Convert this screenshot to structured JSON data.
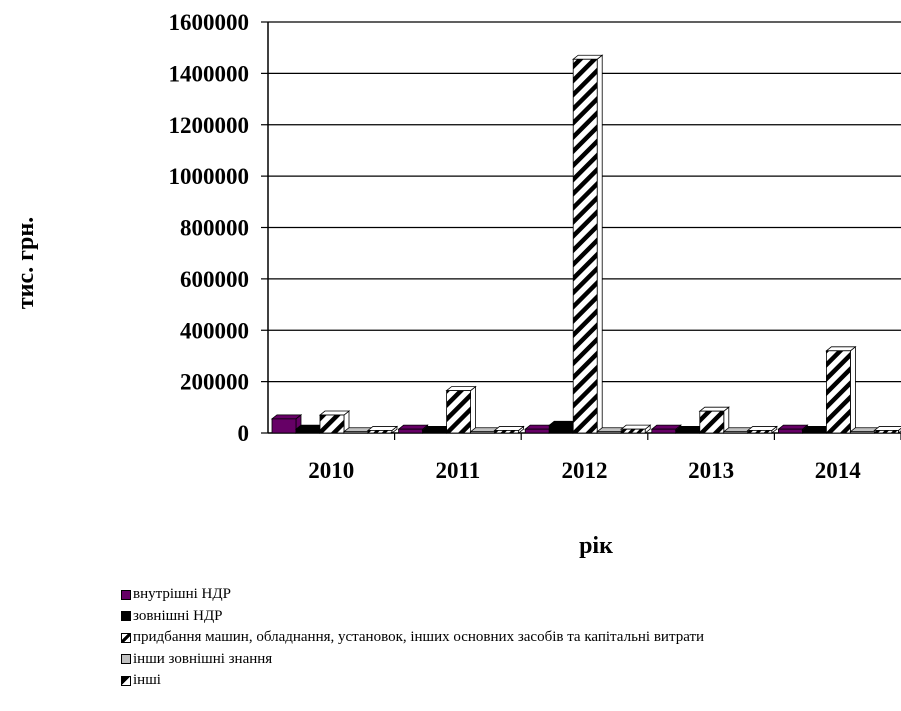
{
  "chart_data": {
    "type": "bar",
    "categories": [
      "2010",
      "2011",
      "2012",
      "2013",
      "2014"
    ],
    "xlabel": "рік",
    "ylabel": "тис. грн.",
    "ylim": [
      0,
      1600000
    ],
    "yticks": [
      "0",
      "200000",
      "400000",
      "600000",
      "800000",
      "1000000",
      "1200000",
      "1400000",
      "1600000"
    ],
    "grid": true,
    "legend_position": "bottom",
    "series": [
      {
        "name": "внутрішні  НДР",
        "values": [
          55000,
          15000,
          15000,
          15000,
          15000
        ],
        "color": "#660066",
        "pattern": "solid"
      },
      {
        "name": "зовнішні  НДР",
        "values": [
          15000,
          10000,
          30000,
          10000,
          10000
        ],
        "color": "#000000",
        "pattern": "solid"
      },
      {
        "name": "придбання  машин,  обладнання,  установок,  інших  основних  засобів  та капітальні  витрати",
        "values": [
          70000,
          165000,
          1455000,
          85000,
          320000
        ],
        "color": "#ffffff",
        "pattern": "hatch"
      },
      {
        "name": "інши  зовнішні  знання",
        "values": [
          5000,
          5000,
          5000,
          5000,
          5000
        ],
        "color": "#c0c0c0",
        "pattern": "solid"
      },
      {
        "name": "інші",
        "values": [
          10000,
          10000,
          15000,
          10000,
          10000
        ],
        "color": "#ffffff",
        "pattern": "hatch-small"
      }
    ]
  }
}
